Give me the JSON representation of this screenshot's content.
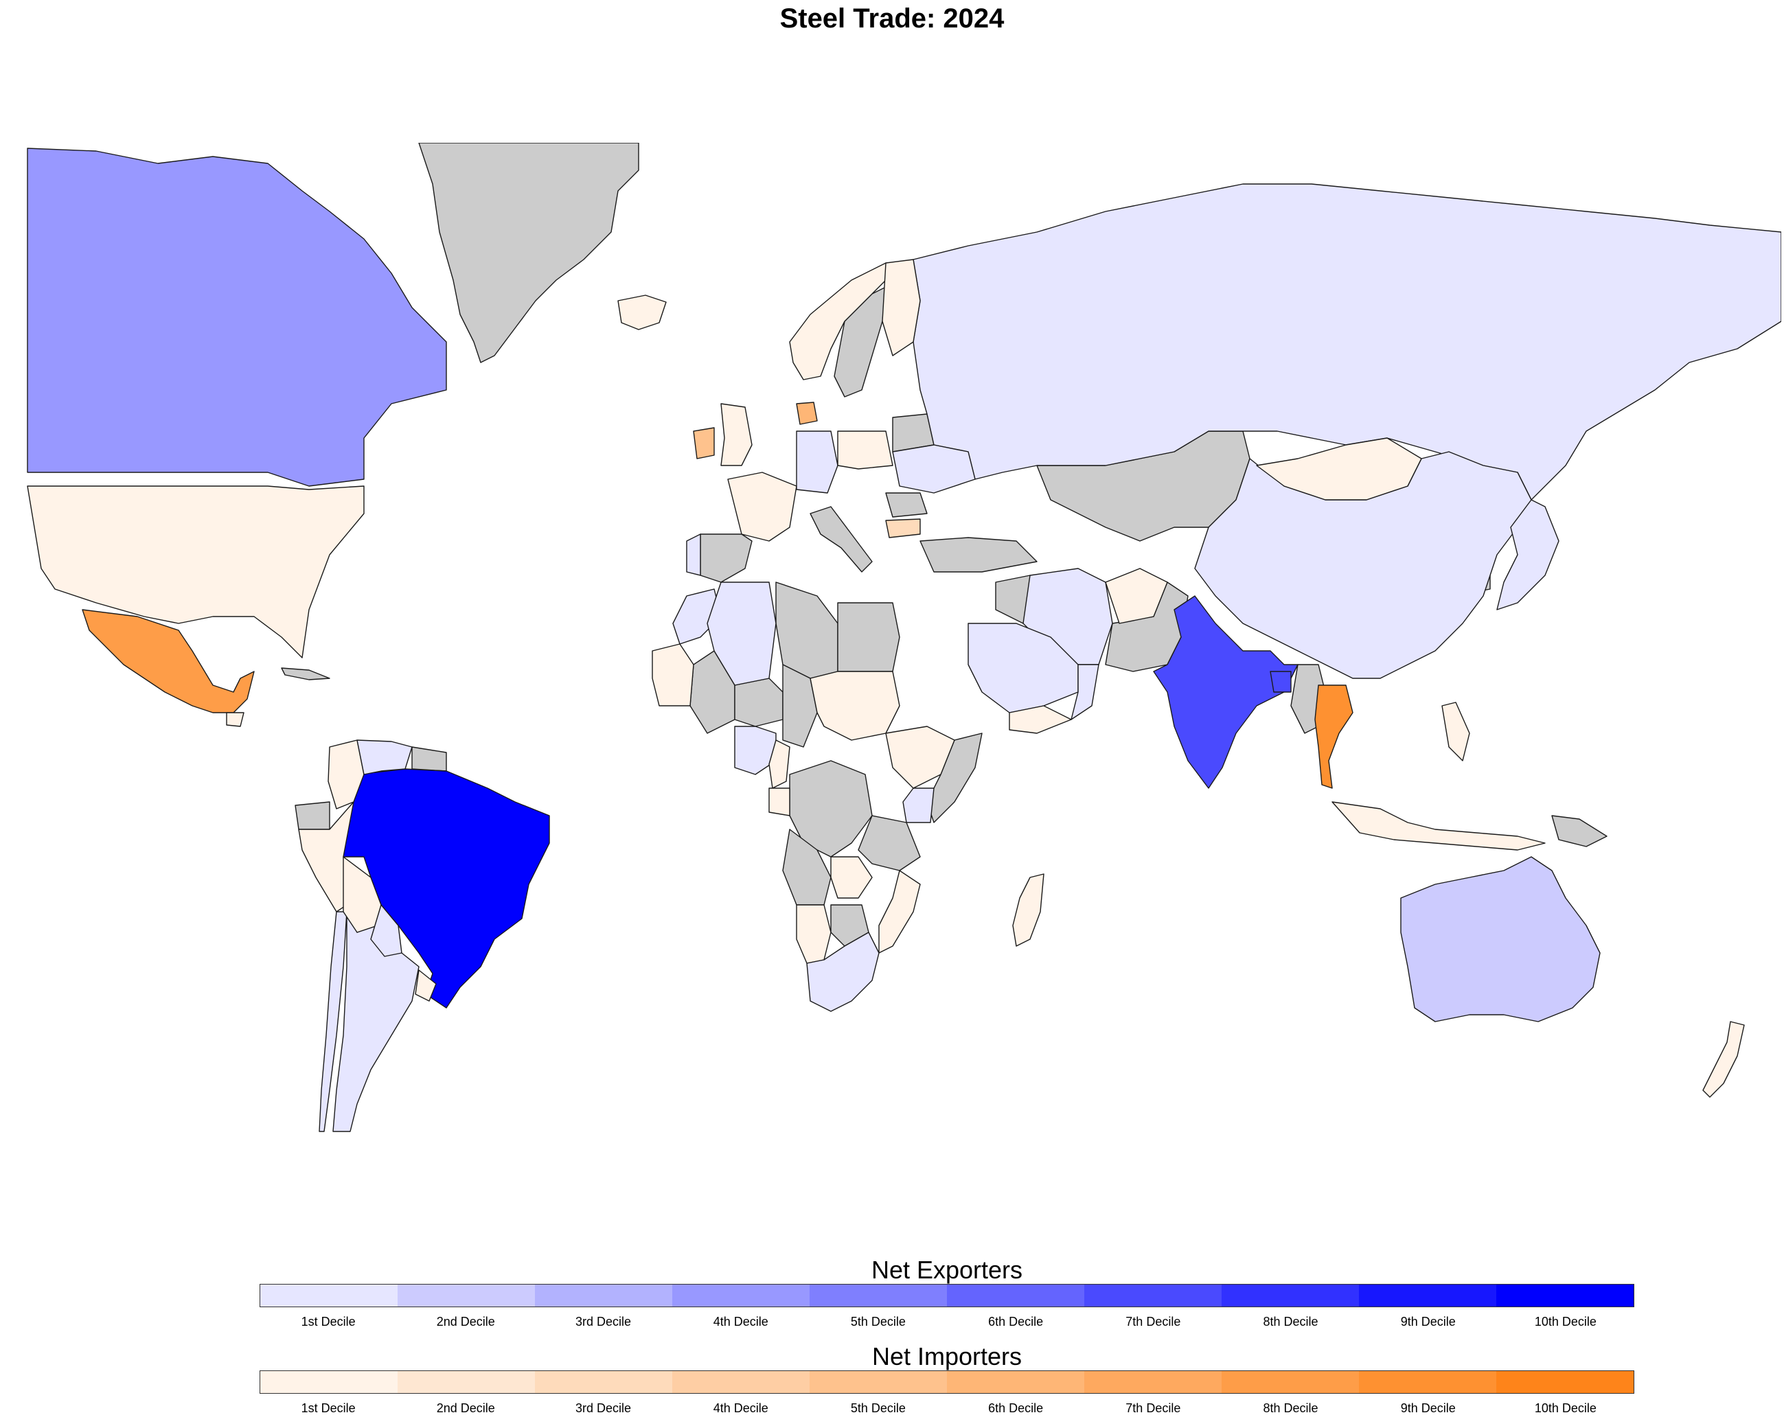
{
  "title": "Steel Trade: 2024",
  "map": {
    "no_data_color": "#cccccc",
    "ocean_color": "#ffffff",
    "countries": [
      {
        "name": "Canada",
        "group": "exporter",
        "decile": 4
      },
      {
        "name": "United States",
        "group": "importer",
        "decile": 1
      },
      {
        "name": "Mexico",
        "group": "importer",
        "decile": 8
      },
      {
        "name": "Greenland",
        "group": "none",
        "decile": 0
      },
      {
        "name": "Iceland",
        "group": "importer",
        "decile": 1
      },
      {
        "name": "Brazil",
        "group": "exporter",
        "decile": 10
      },
      {
        "name": "Argentina",
        "group": "exporter",
        "decile": 1
      },
      {
        "name": "Chile",
        "group": "exporter",
        "decile": 1
      },
      {
        "name": "Peru",
        "group": "importer",
        "decile": 1
      },
      {
        "name": "Colombia",
        "group": "importer",
        "decile": 1
      },
      {
        "name": "Venezuela",
        "group": "exporter",
        "decile": 1
      },
      {
        "name": "Bolivia",
        "group": "importer",
        "decile": 1
      },
      {
        "name": "Paraguay",
        "group": "exporter",
        "decile": 1
      },
      {
        "name": "Uruguay",
        "group": "importer",
        "decile": 1
      },
      {
        "name": "Ecuador",
        "group": "none",
        "decile": 0
      },
      {
        "name": "Guyana",
        "group": "none",
        "decile": 0
      },
      {
        "name": "Russia",
        "group": "exporter",
        "decile": 1
      },
      {
        "name": "China",
        "group": "exporter",
        "decile": 1
      },
      {
        "name": "Mongolia",
        "group": "importer",
        "decile": 1
      },
      {
        "name": "Kazakhstan",
        "group": "none",
        "decile": 0
      },
      {
        "name": "India",
        "group": "exporter",
        "decile": 7
      },
      {
        "name": "Bangladesh",
        "group": "exporter",
        "decile": 7
      },
      {
        "name": "Thailand",
        "group": "importer",
        "decile": 9
      },
      {
        "name": "Myanmar",
        "group": "none",
        "decile": 0
      },
      {
        "name": "Japan",
        "group": "exporter",
        "decile": 1
      },
      {
        "name": "South Korea",
        "group": "none",
        "decile": 0
      },
      {
        "name": "Indonesia",
        "group": "importer",
        "decile": 1
      },
      {
        "name": "Philippines",
        "group": "importer",
        "decile": 1
      },
      {
        "name": "Australia",
        "group": "exporter",
        "decile": 2
      },
      {
        "name": "New Zealand",
        "group": "importer",
        "decile": 1
      },
      {
        "name": "Papua New Guinea",
        "group": "none",
        "decile": 0
      },
      {
        "name": "Iran",
        "group": "exporter",
        "decile": 1
      },
      {
        "name": "Saudi Arabia",
        "group": "exporter",
        "decile": 1
      },
      {
        "name": "Oman",
        "group": "exporter",
        "decile": 1
      },
      {
        "name": "Yemen",
        "group": "importer",
        "decile": 1
      },
      {
        "name": "Turkey",
        "group": "none",
        "decile": 0
      },
      {
        "name": "Iraq",
        "group": "none",
        "decile": 0
      },
      {
        "name": "Afghanistan",
        "group": "importer",
        "decile": 1
      },
      {
        "name": "Pakistan",
        "group": "none",
        "decile": 0
      },
      {
        "name": "Norway",
        "group": "importer",
        "decile": 1
      },
      {
        "name": "Sweden",
        "group": "none",
        "decile": 0
      },
      {
        "name": "Finland",
        "group": "importer",
        "decile": 1
      },
      {
        "name": "Denmark",
        "group": "importer",
        "decile": 6
      },
      {
        "name": "Ireland",
        "group": "importer",
        "decile": 5
      },
      {
        "name": "United Kingdom",
        "group": "importer",
        "decile": 1
      },
      {
        "name": "France",
        "group": "importer",
        "decile": 1
      },
      {
        "name": "Spain",
        "group": "none",
        "decile": 0
      },
      {
        "name": "Portugal",
        "group": "exporter",
        "decile": 1
      },
      {
        "name": "Germany",
        "group": "exporter",
        "decile": 1
      },
      {
        "name": "Poland",
        "group": "importer",
        "decile": 1
      },
      {
        "name": "Italy",
        "group": "none",
        "decile": 0
      },
      {
        "name": "Ukraine",
        "group": "exporter",
        "decile": 1
      },
      {
        "name": "Romania",
        "group": "none",
        "decile": 0
      },
      {
        "name": "Bulgaria",
        "group": "importer",
        "decile": 3
      },
      {
        "name": "Belarus",
        "group": "none",
        "decile": 0
      },
      {
        "name": "Morocco",
        "group": "exporter",
        "decile": 1
      },
      {
        "name": "Algeria",
        "group": "exporter",
        "decile": 1
      },
      {
        "name": "Libya",
        "group": "none",
        "decile": 0
      },
      {
        "name": "Egypt",
        "group": "none",
        "decile": 0
      },
      {
        "name": "Mauritania",
        "group": "importer",
        "decile": 1
      },
      {
        "name": "Mali",
        "group": "none",
        "decile": 0
      },
      {
        "name": "Niger",
        "group": "none",
        "decile": 0
      },
      {
        "name": "Chad",
        "group": "none",
        "decile": 0
      },
      {
        "name": "Sudan",
        "group": "importer",
        "decile": 1
      },
      {
        "name": "Ethiopia",
        "group": "importer",
        "decile": 1
      },
      {
        "name": "Somalia",
        "group": "none",
        "decile": 0
      },
      {
        "name": "Nigeria",
        "group": "exporter",
        "decile": 1
      },
      {
        "name": "Cameroon",
        "group": "importer",
        "decile": 1
      },
      {
        "name": "Gabon",
        "group": "importer",
        "decile": 1
      },
      {
        "name": "DR Congo",
        "group": "none",
        "decile": 0
      },
      {
        "name": "Kenya",
        "group": "exporter",
        "decile": 1
      },
      {
        "name": "Tanzania",
        "group": "none",
        "decile": 0
      },
      {
        "name": "Angola",
        "group": "none",
        "decile": 0
      },
      {
        "name": "Zambia",
        "group": "importer",
        "decile": 1
      },
      {
        "name": "Mozambique",
        "group": "importer",
        "decile": 1
      },
      {
        "name": "Namibia",
        "group": "importer",
        "decile": 1
      },
      {
        "name": "Botswana",
        "group": "none",
        "decile": 0
      },
      {
        "name": "South Africa",
        "group": "exporter",
        "decile": 1
      },
      {
        "name": "Madagascar",
        "group": "importer",
        "decile": 1
      },
      {
        "name": "Cuba",
        "group": "none",
        "decile": 0
      },
      {
        "name": "Guatemala",
        "group": "importer",
        "decile": 1
      }
    ]
  },
  "legends": [
    {
      "title": "Net Exporters",
      "colors": [
        "#e6e6ff",
        "#cccbfe",
        "#b2b2fe",
        "#9898ff",
        "#7f7ffe",
        "#6464fe",
        "#4a4afe",
        "#3131ff",
        "#1717fe",
        "#0000fe"
      ],
      "labels": [
        "1st Decile",
        "2nd Decile",
        "3rd Decile",
        "4th Decile",
        "5th Decile",
        "6th Decile",
        "7th Decile",
        "8th Decile",
        "9th Decile",
        "10th Decile"
      ]
    },
    {
      "title": "Net Importers",
      "colors": [
        "#fff3e8",
        "#fee7d2",
        "#fedbbb",
        "#fecea4",
        "#fec28d",
        "#feb676",
        "#fea95f",
        "#fe9d48",
        "#fe9131",
        "#fe841a"
      ],
      "labels": [
        "1st Decile",
        "2nd Decile",
        "3rd Decile",
        "4th Decile",
        "5th Decile",
        "6th Decile",
        "7th Decile",
        "8th Decile",
        "9th Decile",
        "10th Decile"
      ]
    }
  ]
}
